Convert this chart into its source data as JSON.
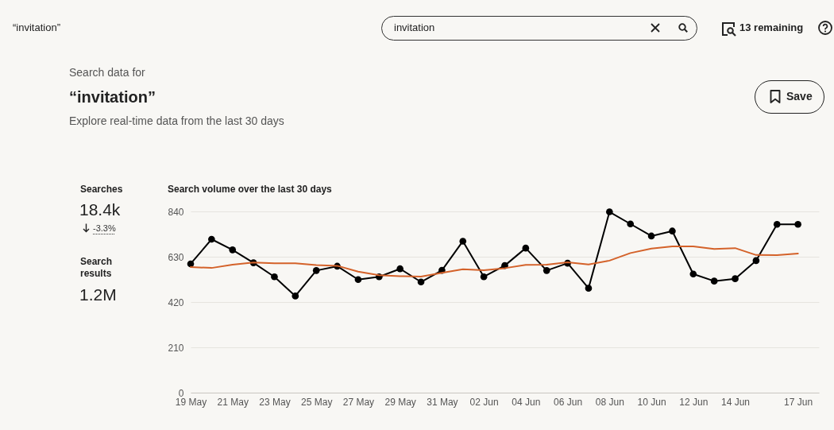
{
  "chart_data": {
    "type": "line",
    "title": "Search volume over the last 30 days",
    "annotations": [
      "“invitation”",
      "invitation",
      "13 remaining",
      "Search data for",
      "“invitation”",
      "Save",
      "Explore real-time data from the last 30 days",
      "Searches",
      "18.4k",
      "-3.3%",
      "Search results",
      "1.2M"
    ],
    "x": [
      "--05-19",
      "--05-20",
      "--05-21",
      "--05-22",
      "--05-23",
      "--05-24",
      "--05-25",
      "--05-26",
      "--05-27",
      "--05-28",
      "--05-29",
      "--05-30",
      "--05-31",
      "--06-01",
      "--06-02",
      "--06-03",
      "--06-04",
      "--06-05",
      "--06-06",
      "--06-07",
      "--06-08",
      "--06-09",
      "--06-10",
      "--06-11",
      "--06-12",
      "--06-13",
      "--06-14",
      "--06-15",
      "--06-16",
      "--06-17"
    ],
    "series": [
      {
        "color": "#000000",
        "marker": "circle",
        "values": [
          597,
          711,
          662,
          602,
          537,
          448,
          566,
          586,
          524,
          537,
          574,
          513,
          567,
          702,
          537,
          589,
          670,
          566,
          600,
          484,
          838,
          782,
          726,
          749,
          550,
          517,
          528,
          612,
          780,
          780
        ]
      },
      {
        "color": "#d4622a",
        "marker": "none",
        "values": [
          582,
          578,
          593,
          603,
          600,
          600,
          591,
          588,
          561,
          544,
          540,
          538,
          555,
          572,
          567,
          577,
          592,
          593,
          604,
          594,
          612,
          647,
          668,
          678,
          678,
          666,
          670,
          638,
          637,
          645
        ]
      }
    ],
    "xlim": [
      "--05-19",
      "--06-18"
    ],
    "xticks": [
      {
        "value": "--05-19",
        "label": "19 May"
      },
      {
        "value": "--05-21",
        "label": "21 May"
      },
      {
        "value": "--05-23",
        "label": "23 May"
      },
      {
        "value": "--05-25",
        "label": "25 May"
      },
      {
        "value": "--05-27",
        "label": "27 May"
      },
      {
        "value": "--05-29",
        "label": "29 May"
      },
      {
        "value": "--05-31",
        "label": "31 May"
      },
      {
        "value": "--06-02",
        "label": "02 Jun"
      },
      {
        "value": "--06-04",
        "label": "04 Jun"
      },
      {
        "value": "--06-06",
        "label": "06 Jun"
      },
      {
        "value": "--06-08",
        "label": "08 Jun"
      },
      {
        "value": "--06-10",
        "label": "10 Jun"
      },
      {
        "value": "--06-12",
        "label": "12 Jun"
      },
      {
        "value": "--06-14",
        "label": "14 Jun"
      },
      {
        "value": "--06-17",
        "label": "17 Jun"
      }
    ],
    "ylim": [
      0,
      840
    ],
    "yticks": [
      0,
      210,
      420,
      630,
      840
    ],
    "grid": "y",
    "line_style": "solid"
  }
}
